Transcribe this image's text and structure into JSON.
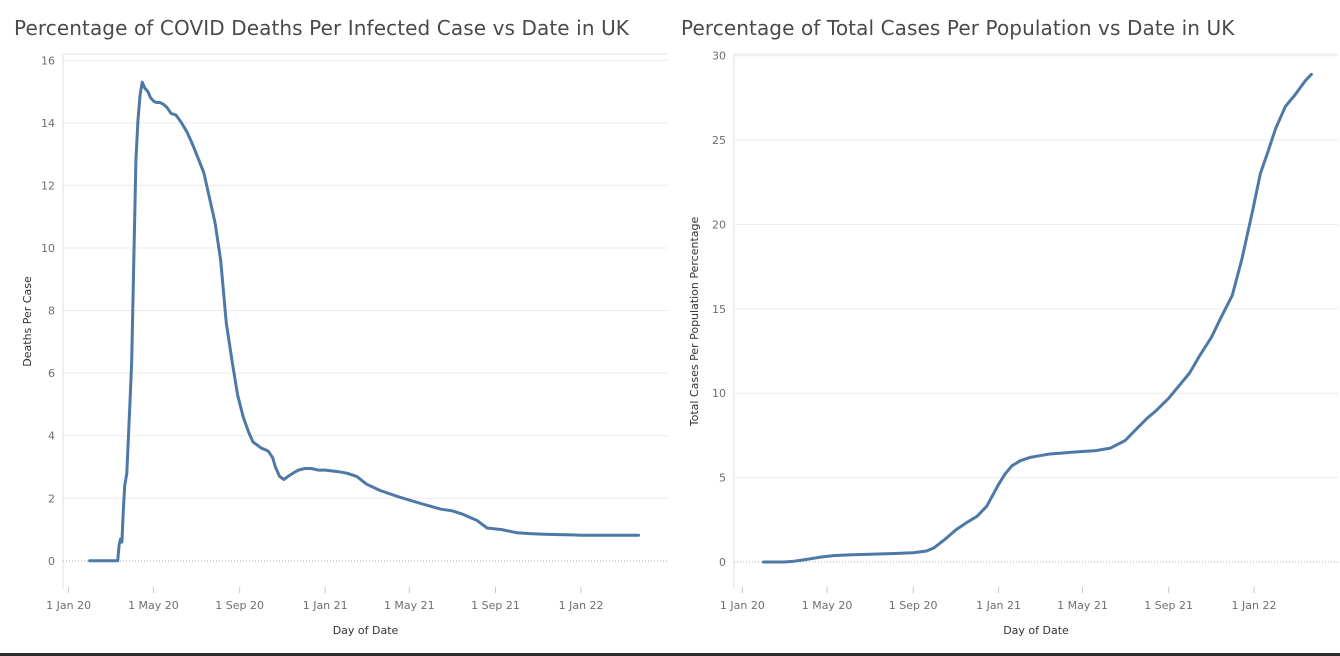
{
  "chart_data": [
    {
      "type": "line",
      "title": "Percentage of COVID Deaths Per Infected Case vs Date in UK",
      "xlabel": "Day of Date",
      "ylabel": "Deaths Per Case",
      "x_ticks": [
        "1 Jan 20",
        "1 May 20",
        "1 Sep 20",
        "1 Jan 21",
        "1 May 21",
        "1 Sep 21",
        "1 Jan 22"
      ],
      "y_ticks": [
        0,
        2,
        4,
        6,
        8,
        10,
        12,
        14,
        16
      ],
      "xlim": [
        "2019-12-24",
        "2022-05-05"
      ],
      "ylim": [
        -0.9,
        16.2
      ],
      "grid": true,
      "line_color": "#4e79a7",
      "series": [
        {
          "x": [
            "2020-01-31",
            "2020-02-20",
            "2020-03-08",
            "2020-03-11",
            "2020-03-13",
            "2020-03-15",
            "2020-03-17",
            "2020-03-19",
            "2020-03-21",
            "2020-03-24",
            "2020-03-26",
            "2020-03-29",
            "2020-03-31",
            "2020-04-03",
            "2020-04-06",
            "2020-04-09",
            "2020-04-12",
            "2020-04-15",
            "2020-04-19",
            "2020-04-23",
            "2020-04-27",
            "2020-05-01",
            "2020-05-05",
            "2020-05-10",
            "2020-05-15",
            "2020-05-20",
            "2020-05-26",
            "2020-06-02",
            "2020-06-10",
            "2020-06-18",
            "2020-06-26",
            "2020-07-05",
            "2020-07-12",
            "2020-07-20",
            "2020-07-28",
            "2020-08-05",
            "2020-08-13",
            "2020-08-21",
            "2020-08-29",
            "2020-09-06",
            "2020-09-14",
            "2020-09-20",
            "2020-09-26",
            "2020-10-02",
            "2020-10-08",
            "2020-10-12",
            "2020-10-18",
            "2020-10-22",
            "2020-10-28",
            "2020-11-03",
            "2020-11-09",
            "2020-11-16",
            "2020-11-24",
            "2020-12-03",
            "2020-12-12",
            "2020-12-22",
            "2021-01-01",
            "2021-01-08",
            "2021-01-12",
            "2021-01-20",
            "2021-02-01",
            "2021-02-15",
            "2021-03-01",
            "2021-03-20",
            "2021-04-15",
            "2021-05-15",
            "2021-06-15",
            "2021-07-01",
            "2021-07-15",
            "2021-07-25",
            "2021-08-05",
            "2021-08-20",
            "2021-09-10",
            "2021-10-01",
            "2021-10-20",
            "2021-11-10",
            "2021-12-01",
            "2021-12-20",
            "2021-12-31",
            "2022-01-10",
            "2022-02-01",
            "2022-03-01",
            "2022-03-24"
          ],
          "y": [
            0,
            0,
            0,
            0,
            0.5,
            0.7,
            0.6,
            1.6,
            2.4,
            2.8,
            3.8,
            5.3,
            6.4,
            9.6,
            12.8,
            14.1,
            14.9,
            15.3,
            15.1,
            15.0,
            14.8,
            14.7,
            14.65,
            14.65,
            14.6,
            14.5,
            14.3,
            14.25,
            14.0,
            13.7,
            13.3,
            12.8,
            12.4,
            11.6,
            10.8,
            9.6,
            7.6,
            6.4,
            5.3,
            4.6,
            4.1,
            3.8,
            3.7,
            3.6,
            3.55,
            3.5,
            3.3,
            3.0,
            2.7,
            2.6,
            2.7,
            2.8,
            2.9,
            2.95,
            2.95,
            2.9,
            2.9,
            2.88,
            2.87,
            2.85,
            2.8,
            2.7,
            2.45,
            2.25,
            2.05,
            1.85,
            1.65,
            1.6,
            1.5,
            1.4,
            1.3,
            1.05,
            1.0,
            0.9,
            0.87,
            0.85,
            0.84,
            0.83,
            0.82,
            0.82,
            0.82,
            0.82,
            0.82
          ]
        }
      ]
    },
    {
      "type": "line",
      "title": "Percentage of Total Cases Per Population vs Date in UK",
      "xlabel": "Day of Date",
      "ylabel": "Total Cases Per Population Percentage",
      "x_ticks": [
        "1 Jan 20",
        "1 May 20",
        "1 Sep 20",
        "1 Jan 21",
        "1 May 21",
        "1 Sep 21",
        "1 Jan 22"
      ],
      "y_ticks": [
        0,
        5,
        10,
        15,
        20,
        25,
        30
      ],
      "xlim": [
        "2019-12-20",
        "2022-05-01"
      ],
      "ylim": [
        -1.6,
        30.1
      ],
      "grid": true,
      "line_color": "#4e79a7",
      "series": [
        {
          "x": [
            "2020-01-31",
            "2020-02-15",
            "2020-03-01",
            "2020-03-15",
            "2020-04-01",
            "2020-04-20",
            "2020-05-10",
            "2020-06-01",
            "2020-07-01",
            "2020-08-01",
            "2020-09-01",
            "2020-09-20",
            "2020-10-01",
            "2020-10-15",
            "2020-11-01",
            "2020-11-15",
            "2020-12-01",
            "2020-12-15",
            "2021-01-01",
            "2021-01-10",
            "2021-01-20",
            "2021-02-01",
            "2021-02-15",
            "2021-03-01",
            "2021-03-15",
            "2021-04-01",
            "2021-04-15",
            "2021-05-01",
            "2021-05-20",
            "2021-06-10",
            "2021-07-01",
            "2021-07-15",
            "2021-08-01",
            "2021-08-15",
            "2021-09-01",
            "2021-09-15",
            "2021-10-01",
            "2021-10-15",
            "2021-11-01",
            "2021-11-15",
            "2021-12-01",
            "2021-12-15",
            "2021-12-31",
            "2022-01-10",
            "2022-01-20",
            "2022-02-01",
            "2022-02-15",
            "2022-03-01",
            "2022-03-15",
            "2022-03-24"
          ],
          "y": [
            0,
            0,
            0,
            0.05,
            0.15,
            0.28,
            0.38,
            0.42,
            0.46,
            0.5,
            0.55,
            0.65,
            0.85,
            1.3,
            1.9,
            2.3,
            2.7,
            3.3,
            4.6,
            5.2,
            5.7,
            6.0,
            6.2,
            6.3,
            6.4,
            6.45,
            6.5,
            6.55,
            6.6,
            6.75,
            7.2,
            7.8,
            8.5,
            9.0,
            9.7,
            10.4,
            11.2,
            12.2,
            13.3,
            14.5,
            15.8,
            18.0,
            21.0,
            23.0,
            24.2,
            25.7,
            27.0,
            27.7,
            28.5,
            28.9
          ]
        }
      ]
    }
  ]
}
